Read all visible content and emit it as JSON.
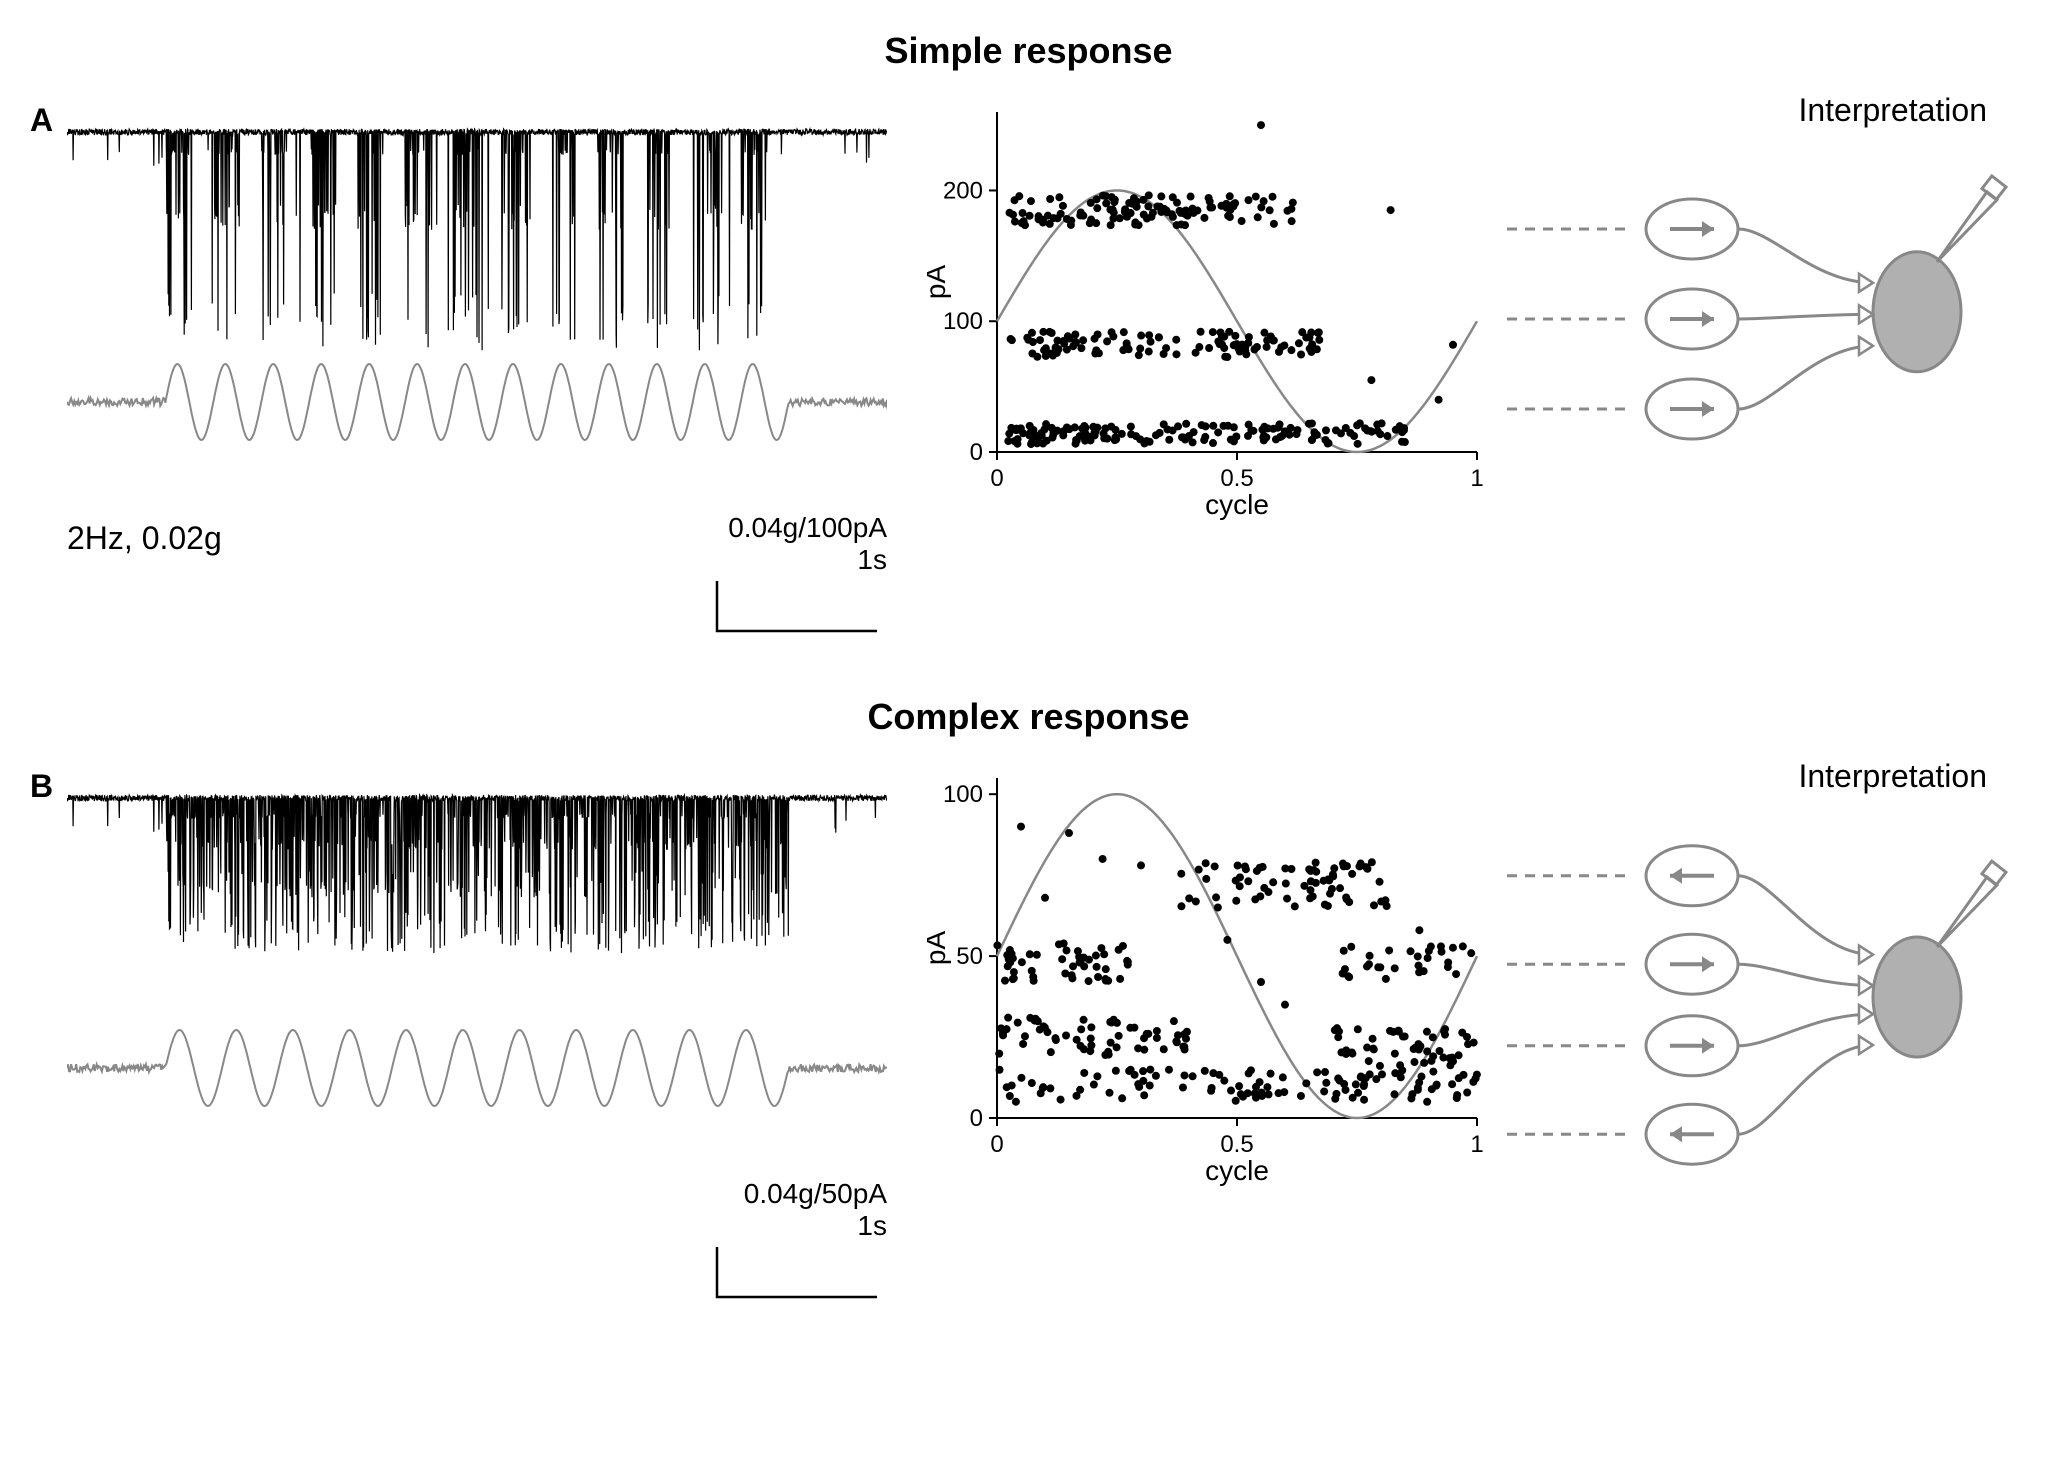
{
  "panelA": {
    "label": "A",
    "title": "Simple response",
    "trace": {
      "stimLabel": "2Hz, 0.02g",
      "scaleY": "0.04g/100pA",
      "scaleX": "1s",
      "stimFreq": 2.0,
      "stimCycles": 13,
      "duration_s": 8.5,
      "traceColor": "#000000",
      "stimColor": "#888888",
      "burstAmplitudesPA": [
        190,
        85,
        20
      ],
      "baselinePA": 0
    },
    "scatter": {
      "ylabel": "pA",
      "xlabel": "cycle",
      "xticks": [
        0,
        0.5,
        1
      ],
      "yticks": [
        0,
        100,
        200
      ],
      "ylim": [
        0,
        260
      ],
      "xlim": [
        0,
        1
      ],
      "sineColor": "#888888",
      "sineAmp": 100,
      "sineOffset": 100,
      "pointColor": "#000000",
      "pointRadius": 4,
      "bands": [
        {
          "yCenter": 185,
          "ySpread": 12,
          "xStart": 0.02,
          "xEnd": 0.62,
          "n": 120
        },
        {
          "yCenter": 82,
          "ySpread": 10,
          "xStart": 0.02,
          "xEnd": 0.68,
          "n": 110
        },
        {
          "yCenter": 14,
          "ySpread": 8,
          "xStart": 0.02,
          "xEnd": 0.85,
          "n": 160
        }
      ],
      "extraPoints": [
        {
          "x": 0.55,
          "y": 250
        },
        {
          "x": 0.82,
          "y": 185
        },
        {
          "x": 0.95,
          "y": 82
        },
        {
          "x": 0.78,
          "y": 55
        },
        {
          "x": 0.92,
          "y": 40
        }
      ]
    },
    "interp": {
      "title": "Interpretation",
      "inputs": [
        {
          "arrowDir": "right",
          "y": 0.2
        },
        {
          "arrowDir": "right",
          "y": 0.5
        },
        {
          "arrowDir": "right",
          "y": 0.8
        }
      ],
      "dashColor": "#888888",
      "cellColor": "#b0b0b0",
      "strokeColor": "#888888"
    }
  },
  "panelB": {
    "label": "B",
    "title": "Complex response",
    "trace": {
      "stimLabel": "",
      "scaleY": "0.04g/50pA",
      "scaleX": "1s",
      "stimFreq": 2.0,
      "stimCycles": 11,
      "duration_s": 8.5,
      "traceColor": "#000000",
      "stimColor": "#888888",
      "burstAmplitudesPA": [
        75,
        48,
        25,
        10
      ],
      "baselinePA": 0
    },
    "scatter": {
      "ylabel": "pA",
      "xlabel": "cycle",
      "xticks": [
        0,
        0.5,
        1
      ],
      "yticks": [
        0,
        50,
        100
      ],
      "ylim": [
        0,
        105
      ],
      "xlim": [
        0,
        1
      ],
      "sineColor": "#888888",
      "sineAmp": 50,
      "sineOffset": 50,
      "pointColor": "#000000",
      "pointRadius": 4,
      "bands": [
        {
          "yCenter": 72,
          "ySpread": 7,
          "xStart": 0.38,
          "xEnd": 0.82,
          "n": 70
        },
        {
          "yCenter": 48,
          "ySpread": 6,
          "xStart": 0.0,
          "xEnd": 0.28,
          "n": 50
        },
        {
          "yCenter": 48,
          "ySpread": 6,
          "xStart": 0.72,
          "xEnd": 1.0,
          "n": 30
        },
        {
          "yCenter": 25,
          "ySpread": 6,
          "xStart": 0.0,
          "xEnd": 0.4,
          "n": 60
        },
        {
          "yCenter": 22,
          "ySpread": 6,
          "xStart": 0.7,
          "xEnd": 1.0,
          "n": 50
        },
        {
          "yCenter": 10,
          "ySpread": 5,
          "xStart": 0.0,
          "xEnd": 1.0,
          "n": 110
        }
      ],
      "extraPoints": [
        {
          "x": 0.15,
          "y": 88
        },
        {
          "x": 0.22,
          "y": 80
        },
        {
          "x": 0.3,
          "y": 78
        },
        {
          "x": 0.1,
          "y": 68
        },
        {
          "x": 0.88,
          "y": 58
        },
        {
          "x": 0.55,
          "y": 42
        },
        {
          "x": 0.6,
          "y": 35
        },
        {
          "x": 0.48,
          "y": 55
        },
        {
          "x": 0.05,
          "y": 90
        }
      ]
    },
    "interp": {
      "title": "Interpretation",
      "inputs": [
        {
          "arrowDir": "left",
          "y": 0.12
        },
        {
          "arrowDir": "right",
          "y": 0.38
        },
        {
          "arrowDir": "right",
          "y": 0.62
        },
        {
          "arrowDir": "left",
          "y": 0.88
        }
      ],
      "dashColor": "#888888",
      "cellColor": "#b0b0b0",
      "strokeColor": "#888888"
    }
  },
  "colors": {
    "bg": "#ffffff",
    "black": "#000000",
    "gray": "#888888"
  },
  "fonts": {
    "titleSize": 36,
    "labelSize": 32,
    "axisSize": 28,
    "tickSize": 24
  }
}
